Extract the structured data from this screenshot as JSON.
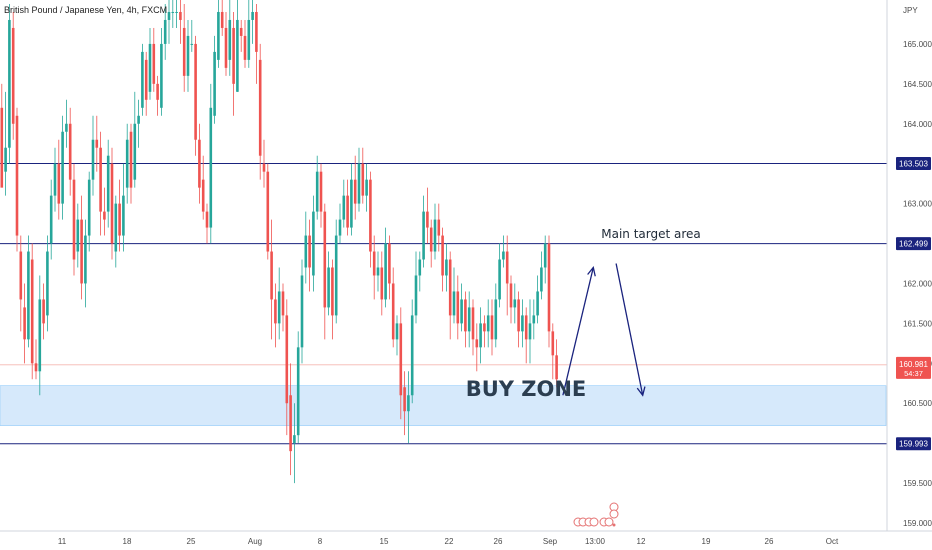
{
  "chart_data": {
    "type": "candlestick",
    "title": "British Pound / Japanese Yen, 4h, FXCM",
    "currency": "JPY",
    "ylim": [
      158.9,
      165.55
    ],
    "y_ticks": [
      159.0,
      159.5,
      160.5,
      161.0,
      161.5,
      162.0,
      163.0,
      164.0,
      164.5,
      165.0
    ],
    "y_tick_labels": [
      "159.000",
      "159.500",
      "160.500",
      "161.000",
      "161.500",
      "162.000",
      "163.000",
      "164.000",
      "164.500",
      "165.000"
    ],
    "x_ticks": [
      "11",
      "18",
      "25",
      "Aug",
      "8",
      "15",
      "22",
      "26",
      "Sep",
      "13:00",
      "12",
      "19",
      "26",
      "Oct"
    ],
    "horizontal_levels": [
      {
        "price": 163.503,
        "label": "163.503",
        "color": "#1a237e"
      },
      {
        "price": 162.499,
        "label": "162.499",
        "color": "#1a237e"
      },
      {
        "price": 159.993,
        "label": "159.993",
        "color": "#1a237e"
      }
    ],
    "current_price": {
      "price": 160.981,
      "label": "160.981",
      "countdown": "54:37",
      "color": "#ef5350"
    },
    "buy_zone": {
      "from": 160.22,
      "to": 160.72,
      "label": "BUY ZONE",
      "fill": "#d6e9fb",
      "stroke": "#90caf9"
    },
    "annotations": [
      {
        "text": "Main target area",
        "anchor_price": 162.2
      }
    ],
    "path_points": [
      {
        "bar": 148,
        "price": 160.6
      },
      {
        "bar": 156,
        "price": 162.2
      },
      {
        "bar": 162,
        "price": 162.25
      },
      {
        "bar": 169,
        "price": 160.6
      }
    ],
    "candles": [
      [
        164.2,
        163.2,
        164.5,
        163.3
      ],
      [
        163.4,
        163.7,
        164.4,
        163.1
      ],
      [
        163.7,
        165.3,
        165.5,
        163.5
      ],
      [
        165.2,
        164.0,
        165.4,
        163.8
      ],
      [
        164.1,
        162.6,
        164.2,
        162.4
      ],
      [
        162.4,
        161.8,
        162.6,
        161.4
      ],
      [
        161.7,
        161.3,
        162.0,
        161.0
      ],
      [
        161.3,
        162.4,
        162.6,
        161.2
      ],
      [
        162.3,
        161.0,
        162.5,
        160.8
      ],
      [
        161.0,
        160.9,
        161.3,
        160.8
      ],
      [
        160.9,
        161.8,
        162.1,
        160.6
      ],
      [
        161.8,
        161.5,
        162.0,
        161.3
      ],
      [
        161.6,
        162.4,
        162.6,
        161.4
      ],
      [
        162.5,
        163.1,
        163.3,
        162.3
      ],
      [
        163.1,
        163.5,
        163.7,
        162.9
      ],
      [
        163.5,
        163.0,
        163.8,
        162.8
      ],
      [
        163.0,
        163.9,
        164.1,
        162.8
      ],
      [
        163.9,
        164.0,
        164.3,
        163.7
      ],
      [
        164.0,
        163.3,
        164.2,
        163.1
      ],
      [
        163.3,
        162.3,
        163.5,
        162.1
      ],
      [
        162.4,
        162.8,
        163.0,
        162.2
      ],
      [
        162.8,
        162.0,
        163.1,
        161.8
      ],
      [
        162.0,
        162.6,
        162.8,
        161.7
      ],
      [
        162.6,
        163.3,
        163.4,
        162.4
      ],
      [
        163.3,
        163.8,
        164.1,
        163.1
      ],
      [
        163.8,
        163.7,
        164.1,
        163.4
      ],
      [
        163.7,
        162.9,
        163.9,
        162.6
      ],
      [
        162.9,
        162.8,
        163.2,
        162.6
      ],
      [
        162.9,
        163.6,
        163.8,
        162.7
      ],
      [
        163.5,
        162.5,
        163.7,
        162.3
      ],
      [
        162.4,
        163.0,
        163.1,
        162.2
      ],
      [
        163.0,
        162.6,
        163.3,
        162.4
      ],
      [
        162.6,
        163.1,
        163.5,
        162.4
      ],
      [
        163.2,
        163.8,
        164.0,
        163.0
      ],
      [
        163.9,
        163.2,
        164.0,
        163.0
      ],
      [
        163.3,
        164.0,
        164.4,
        163.2
      ],
      [
        164.0,
        164.1,
        164.3,
        163.7
      ],
      [
        164.2,
        164.9,
        165.0,
        164.1
      ],
      [
        164.8,
        164.3,
        164.9,
        164.1
      ],
      [
        164.4,
        165.0,
        165.2,
        164.3
      ],
      [
        165.0,
        164.5,
        165.2,
        164.4
      ],
      [
        164.5,
        164.3,
        164.6,
        164.1
      ],
      [
        164.2,
        165.0,
        165.2,
        164.1
      ],
      [
        165.0,
        165.3,
        165.5,
        164.8
      ],
      [
        165.3,
        165.4,
        165.6,
        165.0
      ],
      [
        165.4,
        165.4,
        165.6,
        165.2
      ],
      [
        165.4,
        165.4,
        165.6,
        165.2
      ],
      [
        165.4,
        165.3,
        165.6,
        165.0
      ],
      [
        165.2,
        164.6,
        165.5,
        164.4
      ],
      [
        164.6,
        165.1,
        165.3,
        164.4
      ],
      [
        165.0,
        165.0,
        165.3,
        164.9
      ],
      [
        165.0,
        163.8,
        165.1,
        163.6
      ],
      [
        163.8,
        163.2,
        164.0,
        163.0
      ],
      [
        163.3,
        162.9,
        163.6,
        162.8
      ],
      [
        162.9,
        162.7,
        163.0,
        162.5
      ],
      [
        162.7,
        164.2,
        164.5,
        162.5
      ],
      [
        164.1,
        164.9,
        165.1,
        164.0
      ],
      [
        164.8,
        165.4,
        165.6,
        164.7
      ],
      [
        165.4,
        165.2,
        165.6,
        165.1
      ],
      [
        165.2,
        164.7,
        165.4,
        164.6
      ],
      [
        164.8,
        165.3,
        165.6,
        164.6
      ],
      [
        165.2,
        164.5,
        165.4,
        164.1
      ],
      [
        164.4,
        165.3,
        165.6,
        164.4
      ],
      [
        165.2,
        165.1,
        165.3,
        164.9
      ],
      [
        165.1,
        164.8,
        165.3,
        164.7
      ],
      [
        164.8,
        165.3,
        165.6,
        164.7
      ],
      [
        165.3,
        165.4,
        165.6,
        165.0
      ],
      [
        165.4,
        164.9,
        165.5,
        164.5
      ],
      [
        164.8,
        163.6,
        165.0,
        163.3
      ],
      [
        163.5,
        163.4,
        163.8,
        163.2
      ],
      [
        163.4,
        162.4,
        163.5,
        162.3
      ],
      [
        162.4,
        161.8,
        162.8,
        161.3
      ],
      [
        161.8,
        161.5,
        162.0,
        161.2
      ],
      [
        161.5,
        161.9,
        162.2,
        161.3
      ],
      [
        161.9,
        161.6,
        162.0,
        161.4
      ],
      [
        161.6,
        160.5,
        161.8,
        160.1
      ],
      [
        160.6,
        159.9,
        161.0,
        159.6
      ],
      [
        160.0,
        160.1,
        160.5,
        159.5
      ],
      [
        160.1,
        161.2,
        161.4,
        160.0
      ],
      [
        161.2,
        162.1,
        162.3,
        161.0
      ],
      [
        162.2,
        162.6,
        162.9,
        162.0
      ],
      [
        162.6,
        162.2,
        162.8,
        161.9
      ],
      [
        162.1,
        162.9,
        163.1,
        161.9
      ],
      [
        162.9,
        163.4,
        163.6,
        162.8
      ],
      [
        163.4,
        162.9,
        163.5,
        162.7
      ],
      [
        162.9,
        161.7,
        163.0,
        161.3
      ],
      [
        161.7,
        162.2,
        162.4,
        161.6
      ],
      [
        162.2,
        161.6,
        162.3,
        161.3
      ],
      [
        161.6,
        162.6,
        162.8,
        161.5
      ],
      [
        162.6,
        162.8,
        163.0,
        162.5
      ],
      [
        162.8,
        163.1,
        163.3,
        162.7
      ],
      [
        163.1,
        162.7,
        163.3,
        162.6
      ],
      [
        162.7,
        163.3,
        163.5,
        162.6
      ],
      [
        163.3,
        163.0,
        163.6,
        162.8
      ],
      [
        163.0,
        163.5,
        163.7,
        162.9
      ],
      [
        163.5,
        163.1,
        163.7,
        163.0
      ],
      [
        163.1,
        163.3,
        163.5,
        162.9
      ],
      [
        163.3,
        162.4,
        163.4,
        162.2
      ],
      [
        162.4,
        162.1,
        162.6,
        161.8
      ],
      [
        162.1,
        162.2,
        162.4,
        161.9
      ],
      [
        162.2,
        161.8,
        162.4,
        161.6
      ],
      [
        161.8,
        162.5,
        162.7,
        161.7
      ],
      [
        162.5,
        162.0,
        162.6,
        161.8
      ],
      [
        162.0,
        161.3,
        162.2,
        161.2
      ],
      [
        161.3,
        161.5,
        161.6,
        161.1
      ],
      [
        161.5,
        160.6,
        161.7,
        160.3
      ],
      [
        160.7,
        160.4,
        160.9,
        160.1
      ],
      [
        160.4,
        160.6,
        160.9,
        160.0
      ],
      [
        160.6,
        161.6,
        161.8,
        160.5
      ],
      [
        161.6,
        162.1,
        162.4,
        161.5
      ],
      [
        162.1,
        162.3,
        162.4,
        161.9
      ],
      [
        162.3,
        162.9,
        163.1,
        162.2
      ],
      [
        162.9,
        162.7,
        163.2,
        162.5
      ],
      [
        162.7,
        162.4,
        162.8,
        162.2
      ],
      [
        162.4,
        162.8,
        163.0,
        162.3
      ],
      [
        162.8,
        162.6,
        163.0,
        162.4
      ],
      [
        162.6,
        162.1,
        162.7,
        161.9
      ],
      [
        162.1,
        162.3,
        162.5,
        161.9
      ],
      [
        162.3,
        161.6,
        162.4,
        161.3
      ],
      [
        161.6,
        161.9,
        162.2,
        161.5
      ],
      [
        161.9,
        161.5,
        162.1,
        161.3
      ],
      [
        161.5,
        161.8,
        162.0,
        161.4
      ],
      [
        161.8,
        161.4,
        161.9,
        161.2
      ],
      [
        161.4,
        161.7,
        161.9,
        161.2
      ],
      [
        161.7,
        161.3,
        161.8,
        161.1
      ],
      [
        161.3,
        161.2,
        161.5,
        160.9
      ],
      [
        161.2,
        161.5,
        161.7,
        161.0
      ],
      [
        161.5,
        161.4,
        161.6,
        161.2
      ],
      [
        161.4,
        161.6,
        161.8,
        161.2
      ],
      [
        161.6,
        161.3,
        161.8,
        161.1
      ],
      [
        161.3,
        161.8,
        162.0,
        161.2
      ],
      [
        161.8,
        162.3,
        162.5,
        161.7
      ],
      [
        162.3,
        162.4,
        162.6,
        162.2
      ],
      [
        162.4,
        162.0,
        162.6,
        161.6
      ],
      [
        162.0,
        161.7,
        162.1,
        161.5
      ],
      [
        161.7,
        161.8,
        162.0,
        161.5
      ],
      [
        161.8,
        161.4,
        161.9,
        161.2
      ],
      [
        161.4,
        161.6,
        161.8,
        161.2
      ],
      [
        161.6,
        161.3,
        161.7,
        161.0
      ],
      [
        161.3,
        161.5,
        161.8,
        161.0
      ],
      [
        161.5,
        161.6,
        161.8,
        161.3
      ],
      [
        161.6,
        161.9,
        162.1,
        161.5
      ],
      [
        161.9,
        162.2,
        162.4,
        161.8
      ],
      [
        162.2,
        162.5,
        162.6,
        162.0
      ],
      [
        162.5,
        161.4,
        162.6,
        161.2
      ],
      [
        161.4,
        161.1,
        161.5,
        160.8
      ],
      [
        161.1,
        160.8,
        161.3,
        160.7
      ]
    ]
  }
}
